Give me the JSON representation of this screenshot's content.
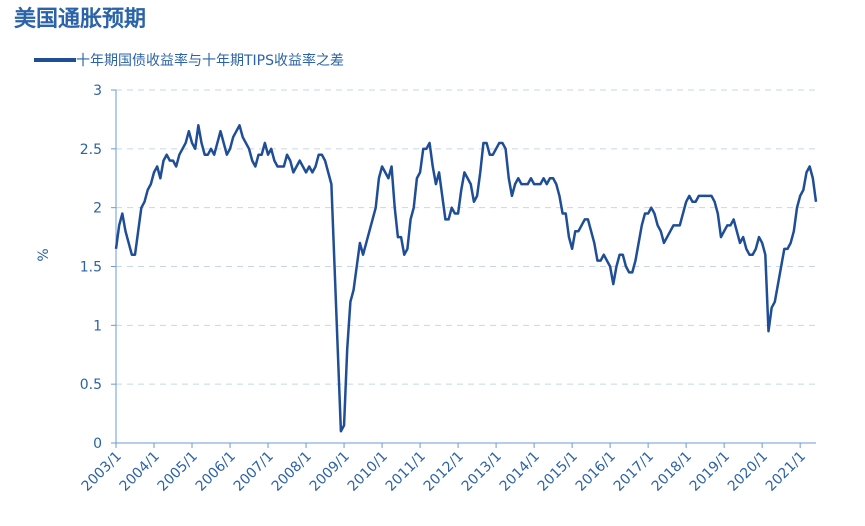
{
  "chart_data": {
    "type": "line",
    "title": "美国通胀预期",
    "y_label": "%",
    "x": [
      "2003/1",
      "2003/2",
      "2003/3",
      "2003/4",
      "2003/5",
      "2003/6",
      "2003/7",
      "2003/8",
      "2003/9",
      "2003/10",
      "2003/11",
      "2003/12",
      "2004/1",
      "2004/2",
      "2004/3",
      "2004/4",
      "2004/5",
      "2004/6",
      "2004/7",
      "2004/8",
      "2004/9",
      "2004/10",
      "2004/11",
      "2004/12",
      "2005/1",
      "2005/2",
      "2005/3",
      "2005/4",
      "2005/5",
      "2005/6",
      "2005/7",
      "2005/8",
      "2005/9",
      "2005/10",
      "2005/11",
      "2005/12",
      "2006/1",
      "2006/2",
      "2006/3",
      "2006/4",
      "2006/5",
      "2006/6",
      "2006/7",
      "2006/8",
      "2006/9",
      "2006/10",
      "2006/11",
      "2006/12",
      "2007/1",
      "2007/2",
      "2007/3",
      "2007/4",
      "2007/5",
      "2007/6",
      "2007/7",
      "2007/8",
      "2007/9",
      "2007/10",
      "2007/11",
      "2007/12",
      "2008/1",
      "2008/2",
      "2008/3",
      "2008/4",
      "2008/5",
      "2008/6",
      "2008/7",
      "2008/8",
      "2008/9",
      "2008/10",
      "2008/11",
      "2008/12",
      "2009/1",
      "2009/2",
      "2009/3",
      "2009/4",
      "2009/5",
      "2009/6",
      "2009/7",
      "2009/8",
      "2009/9",
      "2009/10",
      "2009/11",
      "2009/12",
      "2010/1",
      "2010/2",
      "2010/3",
      "2010/4",
      "2010/5",
      "2010/6",
      "2010/7",
      "2010/8",
      "2010/9",
      "2010/10",
      "2010/11",
      "2010/12",
      "2011/1",
      "2011/2",
      "2011/3",
      "2011/4",
      "2011/5",
      "2011/6",
      "2011/7",
      "2011/8",
      "2011/9",
      "2011/10",
      "2011/11",
      "2011/12",
      "2012/1",
      "2012/2",
      "2012/3",
      "2012/4",
      "2012/5",
      "2012/6",
      "2012/7",
      "2012/8",
      "2012/9",
      "2012/10",
      "2012/11",
      "2012/12",
      "2013/1",
      "2013/2",
      "2013/3",
      "2013/4",
      "2013/5",
      "2013/6",
      "2013/7",
      "2013/8",
      "2013/9",
      "2013/10",
      "2013/11",
      "2013/12",
      "2014/1",
      "2014/2",
      "2014/3",
      "2014/4",
      "2014/5",
      "2014/6",
      "2014/7",
      "2014/8",
      "2014/9",
      "2014/10",
      "2014/11",
      "2014/12",
      "2015/1",
      "2015/2",
      "2015/3",
      "2015/4",
      "2015/5",
      "2015/6",
      "2015/7",
      "2015/8",
      "2015/9",
      "2015/10",
      "2015/11",
      "2015/12",
      "2016/1",
      "2016/2",
      "2016/3",
      "2016/4",
      "2016/5",
      "2016/6",
      "2016/7",
      "2016/8",
      "2016/9",
      "2016/10",
      "2016/11",
      "2016/12",
      "2017/1",
      "2017/2",
      "2017/3",
      "2017/4",
      "2017/5",
      "2017/6",
      "2017/7",
      "2017/8",
      "2017/9",
      "2017/10",
      "2017/11",
      "2017/12",
      "2018/1",
      "2018/2",
      "2018/3",
      "2018/4",
      "2018/5",
      "2018/6",
      "2018/7",
      "2018/8",
      "2018/9",
      "2018/10",
      "2018/11",
      "2018/12",
      "2019/1",
      "2019/2",
      "2019/3",
      "2019/4",
      "2019/5",
      "2019/6",
      "2019/7",
      "2019/8",
      "2019/9",
      "2019/10",
      "2019/11",
      "2019/12",
      "2020/1",
      "2020/2",
      "2020/3",
      "2020/4",
      "2020/5",
      "2020/6",
      "2020/7",
      "2020/8",
      "2020/9",
      "2020/10",
      "2020/11",
      "2020/12",
      "2021/1",
      "2021/2",
      "2021/3",
      "2021/4",
      "2021/5",
      "2021/6"
    ],
    "series": [
      {
        "name": "十年期国债收益率与十年期TIPS收益率之差",
        "color": "#1f4e96",
        "values": [
          1.65,
          1.85,
          1.95,
          1.8,
          1.7,
          1.6,
          1.6,
          1.8,
          2.0,
          2.05,
          2.15,
          2.2,
          2.3,
          2.35,
          2.25,
          2.4,
          2.45,
          2.4,
          2.4,
          2.35,
          2.45,
          2.5,
          2.55,
          2.65,
          2.55,
          2.5,
          2.7,
          2.55,
          2.45,
          2.45,
          2.5,
          2.45,
          2.55,
          2.65,
          2.55,
          2.45,
          2.5,
          2.6,
          2.65,
          2.7,
          2.6,
          2.55,
          2.5,
          2.4,
          2.35,
          2.45,
          2.45,
          2.55,
          2.45,
          2.5,
          2.4,
          2.35,
          2.35,
          2.35,
          2.45,
          2.4,
          2.3,
          2.35,
          2.4,
          2.35,
          2.3,
          2.35,
          2.3,
          2.35,
          2.45,
          2.45,
          2.4,
          2.3,
          2.2,
          1.5,
          0.8,
          0.1,
          0.15,
          0.8,
          1.2,
          1.3,
          1.5,
          1.7,
          1.6,
          1.7,
          1.8,
          1.9,
          2.0,
          2.25,
          2.35,
          2.3,
          2.25,
          2.35,
          2.0,
          1.75,
          1.75,
          1.6,
          1.65,
          1.9,
          2.0,
          2.25,
          2.3,
          2.5,
          2.5,
          2.55,
          2.35,
          2.2,
          2.3,
          2.1,
          1.9,
          1.9,
          2.0,
          1.95,
          1.95,
          2.15,
          2.3,
          2.25,
          2.2,
          2.05,
          2.1,
          2.3,
          2.55,
          2.55,
          2.45,
          2.45,
          2.5,
          2.55,
          2.55,
          2.5,
          2.25,
          2.1,
          2.2,
          2.25,
          2.2,
          2.2,
          2.2,
          2.25,
          2.2,
          2.2,
          2.2,
          2.25,
          2.2,
          2.25,
          2.25,
          2.2,
          2.1,
          1.95,
          1.95,
          1.75,
          1.65,
          1.8,
          1.8,
          1.85,
          1.9,
          1.9,
          1.8,
          1.7,
          1.55,
          1.55,
          1.6,
          1.55,
          1.5,
          1.35,
          1.5,
          1.6,
          1.6,
          1.5,
          1.45,
          1.45,
          1.55,
          1.7,
          1.85,
          1.95,
          1.95,
          2.0,
          1.95,
          1.85,
          1.8,
          1.7,
          1.75,
          1.8,
          1.85,
          1.85,
          1.85,
          1.95,
          2.05,
          2.1,
          2.05,
          2.05,
          2.1,
          2.1,
          2.1,
          2.1,
          2.1,
          2.05,
          1.95,
          1.75,
          1.8,
          1.85,
          1.85,
          1.9,
          1.8,
          1.7,
          1.75,
          1.65,
          1.6,
          1.6,
          1.65,
          1.75,
          1.7,
          1.6,
          0.95,
          1.15,
          1.2,
          1.35,
          1.5,
          1.65,
          1.65,
          1.7,
          1.8,
          2.0,
          2.1,
          2.15,
          2.3,
          2.35,
          2.25,
          2.05
        ]
      }
    ],
    "xticks": [
      "2003/1",
      "2004/1",
      "2005/1",
      "2006/1",
      "2007/1",
      "2008/1",
      "2009/1",
      "2010/1",
      "2011/1",
      "2012/1",
      "2013/1",
      "2014/1",
      "2015/1",
      "2016/1",
      "2017/1",
      "2018/1",
      "2019/1",
      "2020/1",
      "2021/1"
    ],
    "ylim": [
      0,
      3
    ],
    "yticks": [
      0,
      0.5,
      1,
      1.5,
      2,
      2.5,
      3
    ],
    "grid": true
  }
}
